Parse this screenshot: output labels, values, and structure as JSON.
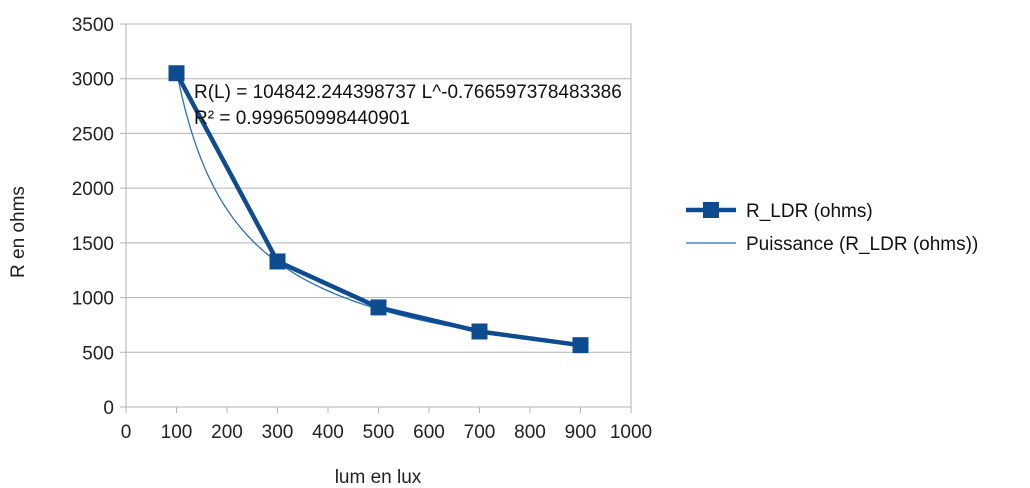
{
  "chart_data": {
    "type": "scatter",
    "xlabel": "lum en lux",
    "ylabel": "R en ohms",
    "xlim": [
      0,
      1000
    ],
    "ylim": [
      0,
      3500
    ],
    "x_ticks": [
      0,
      100,
      200,
      300,
      400,
      500,
      600,
      700,
      800,
      900,
      1000
    ],
    "y_ticks": [
      0,
      500,
      1000,
      1500,
      2000,
      2500,
      3000,
      3500
    ],
    "grid": "horizontal",
    "legend_position": "right",
    "series": [
      {
        "name": "R_LDR (ohms)",
        "x": [
          100,
          300,
          500,
          700,
          900
        ],
        "y": [
          3050,
          1330,
          910,
          690,
          565
        ],
        "color": "#0e4c92",
        "style": "line-with-square-markers"
      }
    ],
    "trendline": {
      "name": "Puissance (R_LDR (ohms))",
      "type": "power",
      "coefficient": 104842.244398737,
      "exponent": -0.766597378483386,
      "x_range": [
        100,
        300,
        500,
        700,
        900
      ],
      "color": "#2a6fc0"
    },
    "annotations": [
      "R(L) = 104842.244398737 L^-0.766597378483386",
      "R² = 0.999650998440901"
    ]
  }
}
